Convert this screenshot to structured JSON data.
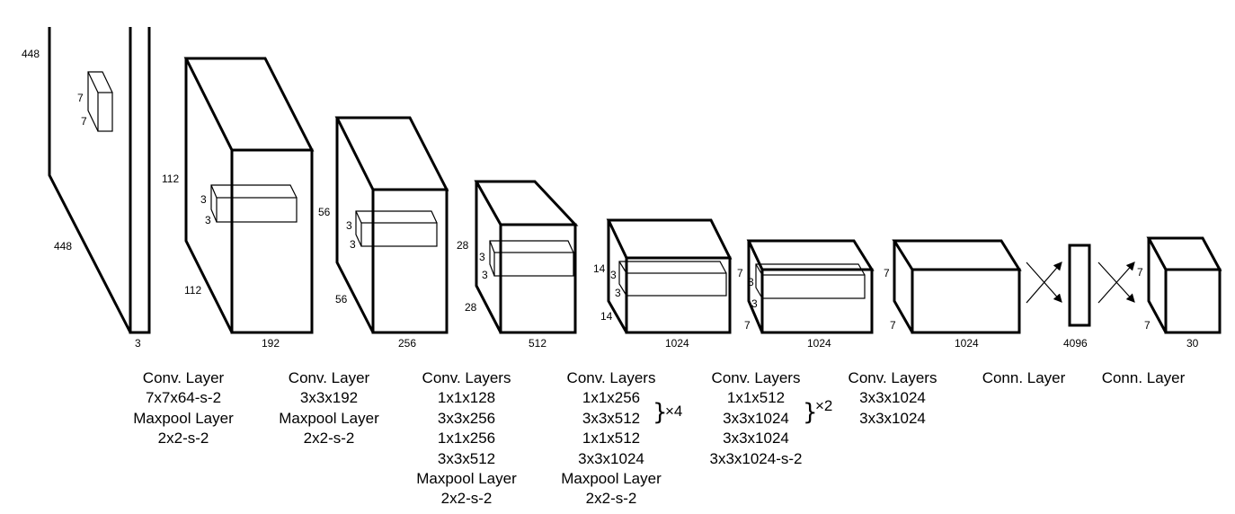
{
  "dimensions": {
    "input": {
      "height": "448",
      "width": "448",
      "depth": "3",
      "kernel_h": "7",
      "kernel_w": "7"
    },
    "b2": {
      "height": "112",
      "width": "112",
      "depth": "192",
      "kernel_h": "3",
      "kernel_w": "3"
    },
    "b3": {
      "height": "56",
      "width": "56",
      "depth": "256",
      "kernel_h": "3",
      "kernel_w": "3"
    },
    "b4": {
      "height": "28",
      "width": "28",
      "depth": "512",
      "kernel_h": "3",
      "kernel_w": "3"
    },
    "b5": {
      "height": "14",
      "width": "14",
      "depth": "1024",
      "kernel_h": "3",
      "kernel_w": "3"
    },
    "b6": {
      "height": "7",
      "width": "7",
      "depth": "1024",
      "kernel_h": "3",
      "kernel_w": "3"
    },
    "b7": {
      "height": "7",
      "width": "7",
      "depth": "1024"
    },
    "fc": {
      "depth": "4096"
    },
    "out": {
      "height": "7",
      "width": "7",
      "depth": "30"
    }
  },
  "labels": [
    {
      "lines": [
        "Conv. Layer",
        "7x7x64-s-2",
        "Maxpool Layer",
        "2x2-s-2"
      ]
    },
    {
      "lines": [
        "Conv. Layer",
        "3x3x192",
        "Maxpool Layer",
        "2x2-s-2"
      ]
    },
    {
      "lines": [
        "Conv. Layers",
        "1x1x128",
        "3x3x256",
        "1x1x256",
        "3x3x512",
        "Maxpool Layer",
        "2x2-s-2"
      ]
    },
    {
      "lines": [
        "Conv. Layers",
        "1x1x256",
        "3x3x512",
        "1x1x512",
        "3x3x1024",
        "Maxpool Layer",
        "2x2-s-2"
      ],
      "repeat": "×4"
    },
    {
      "lines": [
        "Conv. Layers",
        "1x1x512",
        "3x3x1024",
        "3x3x1024",
        "3x3x1024-s-2"
      ],
      "repeat": "×2"
    },
    {
      "lines": [
        "Conv. Layers",
        "3x3x1024",
        "3x3x1024"
      ]
    },
    {
      "lines": [
        "Conn. Layer"
      ]
    },
    {
      "lines": [
        "Conn. Layer"
      ]
    }
  ]
}
